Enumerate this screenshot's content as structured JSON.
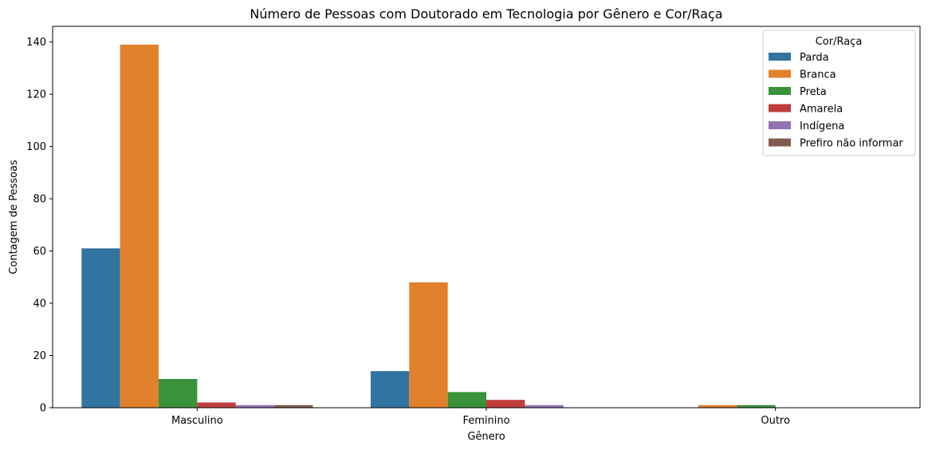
{
  "chart_data": {
    "type": "bar",
    "title": "Número de Pessoas com Doutorado em Tecnologia por Gênero e Cor/Raça",
    "xlabel": "Gênero",
    "ylabel": "Contagem de Pessoas",
    "ylim": [
      0,
      146
    ],
    "yticks": [
      0,
      20,
      40,
      60,
      80,
      100,
      120,
      140
    ],
    "grid": false,
    "legend_title": "Cor/Raça",
    "legend_position": "top-right",
    "categories": [
      "Masculino",
      "Feminino",
      "Outro"
    ],
    "series": [
      {
        "name": "Parda",
        "color": "#3274a1",
        "values": [
          61,
          14,
          0
        ]
      },
      {
        "name": "Branca",
        "color": "#e1812c",
        "values": [
          139,
          48,
          1
        ]
      },
      {
        "name": "Preta",
        "color": "#3a923a",
        "values": [
          11,
          6,
          1
        ]
      },
      {
        "name": "Amarela",
        "color": "#c03d3e",
        "values": [
          2,
          3,
          0
        ]
      },
      {
        "name": "Indígena",
        "color": "#9372b2",
        "values": [
          1,
          1,
          0
        ]
      },
      {
        "name": "Prefiro não informar",
        "color": "#845b53",
        "values": [
          1,
          0,
          0
        ]
      }
    ]
  }
}
